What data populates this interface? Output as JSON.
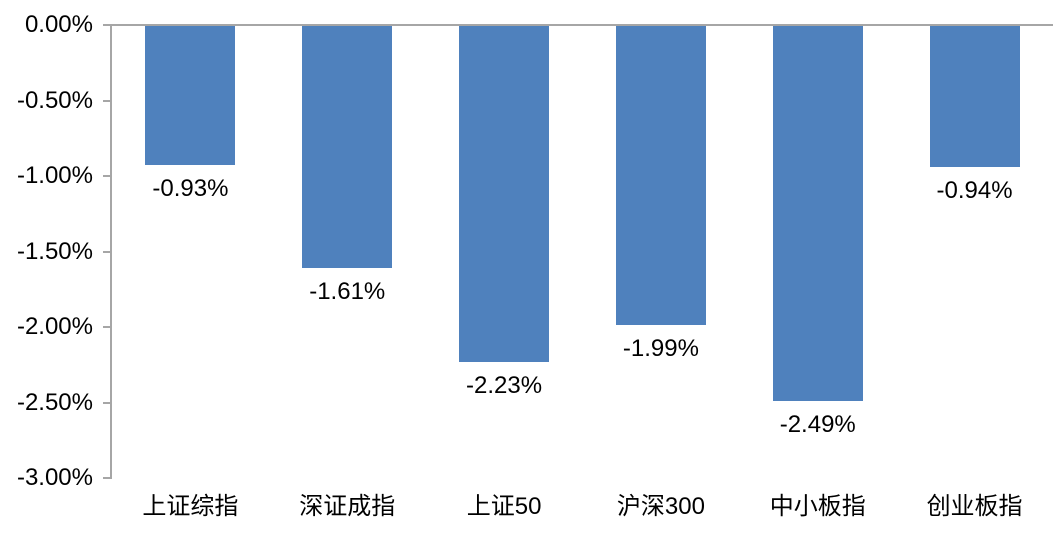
{
  "chart_data": {
    "type": "bar",
    "title": "",
    "xlabel": "",
    "ylabel": "",
    "categories": [
      "上证综指",
      "深证成指",
      "上证50",
      "沪深300",
      "中小板指",
      "创业板指"
    ],
    "values": [
      -0.93,
      -1.61,
      -2.23,
      -1.99,
      -2.49,
      -0.94
    ],
    "data_labels": [
      "-0.93%",
      "-1.61%",
      "-2.23%",
      "-1.99%",
      "-2.49%",
      "-0.94%"
    ],
    "y_ticks": [
      {
        "label": "0.00%",
        "value": 0.0
      },
      {
        "label": "-0.50%",
        "value": -0.5
      },
      {
        "label": "-1.00%",
        "value": -1.0
      },
      {
        "label": "-1.50%",
        "value": -1.5
      },
      {
        "label": "-2.00%",
        "value": -2.0
      },
      {
        "label": "-2.50%",
        "value": -2.5
      },
      {
        "label": "-3.00%",
        "value": -3.0
      }
    ],
    "ylim": [
      -3.0,
      0.0
    ],
    "grid": false,
    "legend_position": "none",
    "colors": {
      "bar": "#4f81bd",
      "axis": "#a6a6a6",
      "text": "#000000",
      "background": "#ffffff"
    }
  }
}
